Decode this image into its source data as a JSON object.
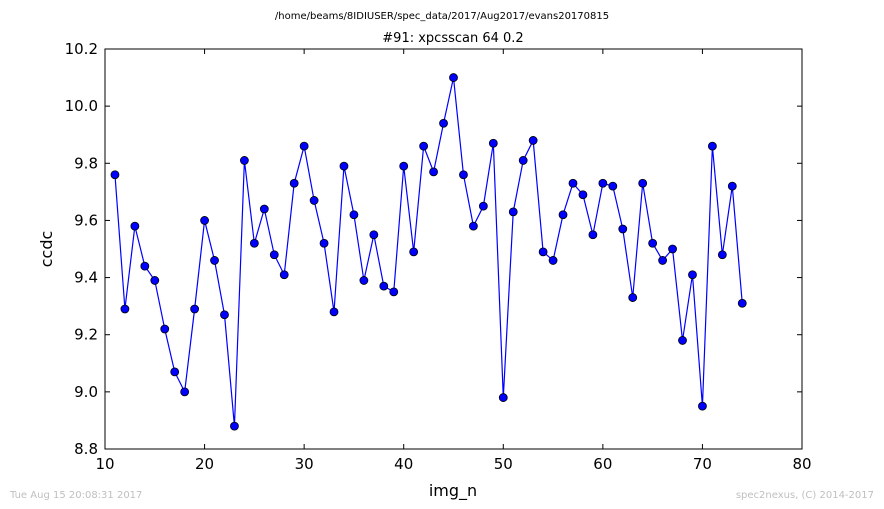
{
  "figure": {
    "path_title": "/home/beams/8IDIUSER/spec_data/2017/Aug2017/evans20170815",
    "footer_left": "Tue Aug 15 20:08:31 2017",
    "footer_right": "spec2nexus, (C) 2014-2017"
  },
  "colors": {
    "series": "#0000ff",
    "axes": "#000000",
    "background": "#ffffff",
    "footer": "#bfbfbf"
  },
  "chart_data": {
    "type": "line",
    "title": "#91: xpcsscan 64 0.2",
    "xlabel": "img_n",
    "ylabel": "ccdc",
    "xlim": [
      10,
      80
    ],
    "ylim": [
      8.8,
      10.2
    ],
    "xticks": [
      "10",
      "20",
      "30",
      "40",
      "50",
      "60",
      "70",
      "80"
    ],
    "yticks": [
      "8.8",
      "9.0",
      "9.2",
      "9.4",
      "9.6",
      "9.8",
      "10.0",
      "10.2"
    ],
    "grid": false,
    "marker": "circle",
    "series": [
      {
        "x": [
          11,
          12,
          13,
          14,
          15,
          16,
          17,
          18,
          19,
          20,
          21,
          22,
          23,
          24,
          25,
          26,
          27,
          28,
          29,
          30,
          31,
          32,
          33,
          34,
          35,
          36,
          37,
          38,
          39,
          40,
          41,
          42,
          43,
          44,
          45,
          46,
          47,
          48,
          49,
          50,
          51,
          52,
          53,
          54,
          55,
          56,
          57,
          58,
          59,
          60,
          61,
          62,
          63,
          64,
          65,
          66,
          67,
          68,
          69,
          70,
          71,
          72,
          73,
          74
        ],
        "values": [
          9.76,
          9.29,
          9.58,
          9.44,
          9.39,
          9.22,
          9.07,
          9.0,
          9.29,
          9.6,
          9.46,
          9.27,
          8.88,
          9.81,
          9.52,
          9.64,
          9.48,
          9.41,
          9.73,
          9.86,
          9.67,
          9.52,
          9.28,
          9.79,
          9.62,
          9.39,
          9.55,
          9.37,
          9.35,
          9.79,
          9.49,
          9.86,
          9.77,
          9.94,
          10.1,
          9.76,
          9.58,
          9.65,
          9.87,
          8.98,
          9.63,
          9.81,
          9.88,
          9.49,
          9.46,
          9.62,
          9.73,
          9.69,
          9.55,
          9.73,
          9.72,
          9.57,
          9.33,
          9.73,
          9.52,
          9.46,
          9.5,
          9.18,
          9.41,
          8.95,
          9.86,
          9.48,
          9.72,
          9.31
        ]
      }
    ]
  }
}
